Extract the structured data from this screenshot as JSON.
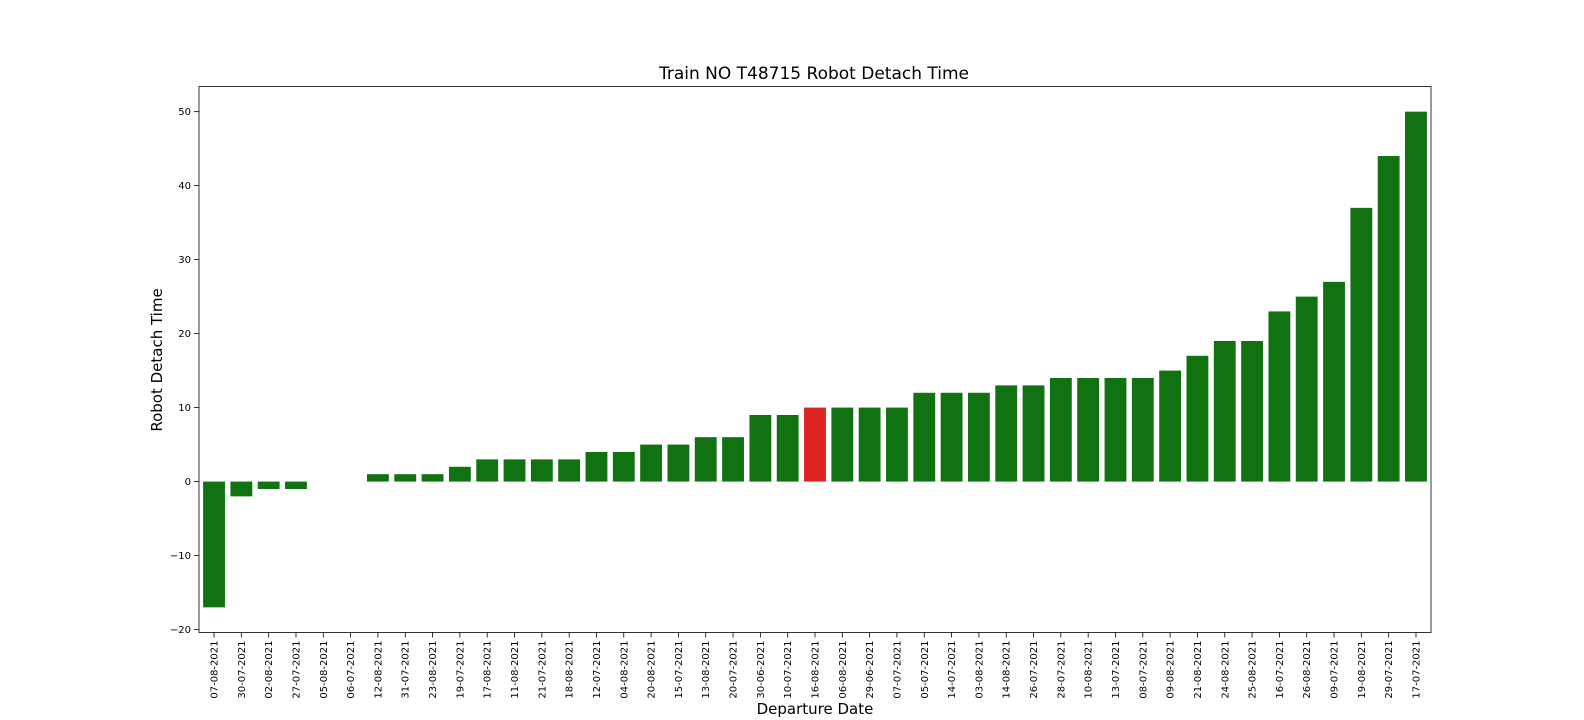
{
  "chart_data": {
    "type": "bar",
    "title": "Train NO T48715 Robot Detach Time",
    "xlabel": "Departure Date",
    "ylabel": "Robot Detach Time",
    "ylim": [
      -20.4,
      53.4
    ],
    "yticks": [
      -20,
      -10,
      0,
      10,
      20,
      30,
      40,
      50
    ],
    "grid": false,
    "default_color": "#117211",
    "highlight_color": "#dd2222",
    "highlight_category": "16-08-2021",
    "categories": [
      "07-08-2021",
      "30-07-2021",
      "02-08-2021",
      "27-07-2021",
      "05-08-2021",
      "06-07-2021",
      "12-08-2021",
      "31-07-2021",
      "23-08-2021",
      "19-07-2021",
      "17-08-2021",
      "11-08-2021",
      "21-07-2021",
      "18-08-2021",
      "12-07-2021",
      "04-08-2021",
      "20-08-2021",
      "15-07-2021",
      "13-08-2021",
      "20-07-2021",
      "30-06-2021",
      "10-07-2021",
      "16-08-2021",
      "06-08-2021",
      "29-06-2021",
      "07-07-2021",
      "05-07-2021",
      "14-07-2021",
      "03-08-2021",
      "14-08-2021",
      "26-07-2021",
      "28-07-2021",
      "10-08-2021",
      "13-07-2021",
      "08-07-2021",
      "09-08-2021",
      "21-08-2021",
      "24-08-2021",
      "25-08-2021",
      "16-07-2021",
      "26-08-2021",
      "09-07-2021",
      "19-08-2021",
      "29-07-2021",
      "17-07-2021"
    ],
    "values": [
      -17,
      -2,
      -1,
      -1,
      0,
      0,
      1,
      1,
      1,
      2,
      3,
      3,
      3,
      3,
      4,
      4,
      5,
      5,
      6,
      6,
      9,
      9,
      10,
      10,
      10,
      10,
      12,
      12,
      12,
      13,
      13,
      14,
      14,
      14,
      14,
      15,
      17,
      19,
      19,
      23,
      25,
      27,
      37,
      44,
      50
    ]
  }
}
